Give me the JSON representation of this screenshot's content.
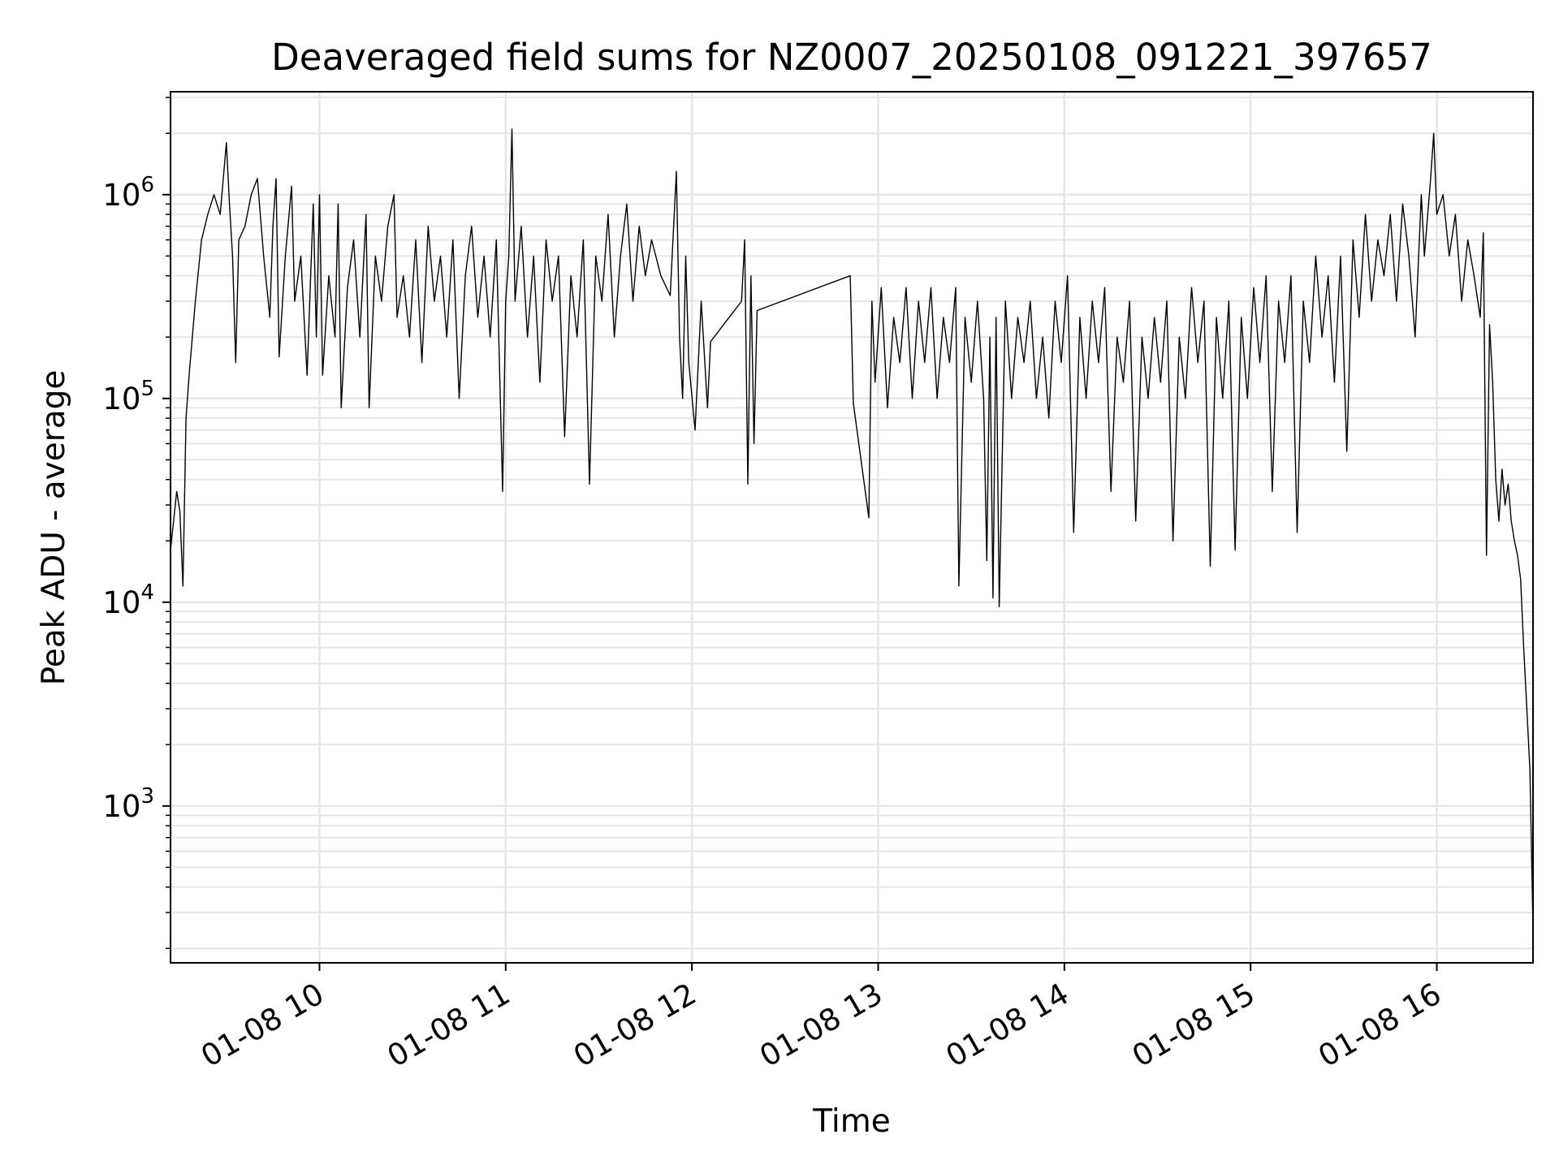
{
  "chart_data": {
    "type": "line",
    "title": "Deaveraged field sums for NZ0007_20250108_091221_397657",
    "xlabel": "Time",
    "ylabel": "Peak ADU - average",
    "yscale": "log",
    "grid": true,
    "grid_minor": true,
    "line_color": "#000000",
    "grid_color": "#e6e6e6",
    "xlim": [
      "2025-01-08 09:12",
      "2025-01-08 16:31"
    ],
    "ylim": [
      170,
      3200000
    ],
    "x_ticks": [
      {
        "value": "2025-01-08 10:00",
        "label": "01-08 10"
      },
      {
        "value": "2025-01-08 11:00",
        "label": "01-08 11"
      },
      {
        "value": "2025-01-08 12:00",
        "label": "01-08 12"
      },
      {
        "value": "2025-01-08 13:00",
        "label": "01-08 13"
      },
      {
        "value": "2025-01-08 14:00",
        "label": "01-08 14"
      },
      {
        "value": "2025-01-08 15:00",
        "label": "01-08 15"
      },
      {
        "value": "2025-01-08 16:00",
        "label": "01-08 16"
      }
    ],
    "y_ticks": [
      {
        "value": 1000,
        "base": "10",
        "exp": "3"
      },
      {
        "value": 10000,
        "base": "10",
        "exp": "4"
      },
      {
        "value": 100000,
        "base": "10",
        "exp": "5"
      },
      {
        "value": 1000000,
        "base": "10",
        "exp": "6"
      }
    ],
    "series": [
      {
        "points": [
          [
            "2025-01-08 09:12",
            18000
          ],
          [
            "2025-01-08 09:13",
            25000
          ],
          [
            "2025-01-08 09:14",
            35000
          ],
          [
            "2025-01-08 09:15",
            28000
          ],
          [
            "2025-01-08 09:16",
            12000
          ],
          [
            "2025-01-08 09:17",
            80000
          ],
          [
            "2025-01-08 09:18",
            130000
          ],
          [
            "2025-01-08 09:20",
            300000
          ],
          [
            "2025-01-08 09:22",
            600000
          ],
          [
            "2025-01-08 09:24",
            800000
          ],
          [
            "2025-01-08 09:26",
            1000000
          ],
          [
            "2025-01-08 09:28",
            800000
          ],
          [
            "2025-01-08 09:30",
            1800000
          ],
          [
            "2025-01-08 09:31",
            900000
          ],
          [
            "2025-01-08 09:32",
            500000
          ],
          [
            "2025-01-08 09:33",
            150000
          ],
          [
            "2025-01-08 09:34",
            600000
          ],
          [
            "2025-01-08 09:36",
            700000
          ],
          [
            "2025-01-08 09:38",
            1000000
          ],
          [
            "2025-01-08 09:40",
            1200000
          ],
          [
            "2025-01-08 09:42",
            500000
          ],
          [
            "2025-01-08 09:44",
            250000
          ],
          [
            "2025-01-08 09:45",
            700000
          ],
          [
            "2025-01-08 09:46",
            1200000
          ],
          [
            "2025-01-08 09:47",
            160000
          ],
          [
            "2025-01-08 09:49",
            500000
          ],
          [
            "2025-01-08 09:51",
            1100000
          ],
          [
            "2025-01-08 09:52",
            300000
          ],
          [
            "2025-01-08 09:54",
            500000
          ],
          [
            "2025-01-08 09:56",
            130000
          ],
          [
            "2025-01-08 09:58",
            900000
          ],
          [
            "2025-01-08 09:59",
            200000
          ],
          [
            "2025-01-08 10:00",
            1000000
          ],
          [
            "2025-01-08 10:01",
            130000
          ],
          [
            "2025-01-08 10:03",
            400000
          ],
          [
            "2025-01-08 10:05",
            200000
          ],
          [
            "2025-01-08 10:06",
            900000
          ],
          [
            "2025-01-08 10:07",
            90000
          ],
          [
            "2025-01-08 10:09",
            350000
          ],
          [
            "2025-01-08 10:11",
            600000
          ],
          [
            "2025-01-08 10:13",
            200000
          ],
          [
            "2025-01-08 10:15",
            800000
          ],
          [
            "2025-01-08 10:16",
            90000
          ],
          [
            "2025-01-08 10:18",
            500000
          ],
          [
            "2025-01-08 10:20",
            300000
          ],
          [
            "2025-01-08 10:22",
            700000
          ],
          [
            "2025-01-08 10:24",
            1000000
          ],
          [
            "2025-01-08 10:25",
            250000
          ],
          [
            "2025-01-08 10:27",
            400000
          ],
          [
            "2025-01-08 10:29",
            200000
          ],
          [
            "2025-01-08 10:31",
            600000
          ],
          [
            "2025-01-08 10:33",
            150000
          ],
          [
            "2025-01-08 10:35",
            700000
          ],
          [
            "2025-01-08 10:37",
            300000
          ],
          [
            "2025-01-08 10:39",
            500000
          ],
          [
            "2025-01-08 10:41",
            200000
          ],
          [
            "2025-01-08 10:43",
            600000
          ],
          [
            "2025-01-08 10:45",
            100000
          ],
          [
            "2025-01-08 10:47",
            400000
          ],
          [
            "2025-01-08 10:49",
            700000
          ],
          [
            "2025-01-08 10:51",
            250000
          ],
          [
            "2025-01-08 10:53",
            500000
          ],
          [
            "2025-01-08 10:55",
            200000
          ],
          [
            "2025-01-08 10:57",
            600000
          ],
          [
            "2025-01-08 10:59",
            35000
          ],
          [
            "2025-01-08 11:00",
            300000
          ],
          [
            "2025-01-08 11:01",
            500000
          ],
          [
            "2025-01-08 11:02",
            2100000
          ],
          [
            "2025-01-08 11:03",
            300000
          ],
          [
            "2025-01-08 11:05",
            700000
          ],
          [
            "2025-01-08 11:07",
            200000
          ],
          [
            "2025-01-08 11:09",
            500000
          ],
          [
            "2025-01-08 11:11",
            120000
          ],
          [
            "2025-01-08 11:13",
            600000
          ],
          [
            "2025-01-08 11:15",
            300000
          ],
          [
            "2025-01-08 11:17",
            500000
          ],
          [
            "2025-01-08 11:19",
            65000
          ],
          [
            "2025-01-08 11:21",
            400000
          ],
          [
            "2025-01-08 11:23",
            200000
          ],
          [
            "2025-01-08 11:25",
            600000
          ],
          [
            "2025-01-08 11:27",
            38000
          ],
          [
            "2025-01-08 11:29",
            500000
          ],
          [
            "2025-01-08 11:31",
            300000
          ],
          [
            "2025-01-08 11:33",
            800000
          ],
          [
            "2025-01-08 11:35",
            200000
          ],
          [
            "2025-01-08 11:37",
            500000
          ],
          [
            "2025-01-08 11:39",
            900000
          ],
          [
            "2025-01-08 11:41",
            300000
          ],
          [
            "2025-01-08 11:43",
            700000
          ],
          [
            "2025-01-08 11:45",
            400000
          ],
          [
            "2025-01-08 11:47",
            600000
          ],
          [
            "2025-01-08 11:50",
            400000
          ],
          [
            "2025-01-08 11:53",
            320000
          ],
          [
            "2025-01-08 11:55",
            1300000
          ],
          [
            "2025-01-08 11:56",
            200000
          ],
          [
            "2025-01-08 11:57",
            100000
          ],
          [
            "2025-01-08 11:58",
            500000
          ],
          [
            "2025-01-08 11:59",
            150000
          ],
          [
            "2025-01-08 12:01",
            70000
          ],
          [
            "2025-01-08 12:03",
            300000
          ],
          [
            "2025-01-08 12:05",
            90000
          ],
          [
            "2025-01-08 12:06",
            190000
          ],
          [
            "2025-01-08 12:16",
            300000
          ],
          [
            "2025-01-08 12:17",
            600000
          ],
          [
            "2025-01-08 12:18",
            38000
          ],
          [
            "2025-01-08 12:19",
            400000
          ],
          [
            "2025-01-08 12:20",
            60000
          ],
          [
            "2025-01-08 12:21",
            270000
          ],
          [
            "2025-01-08 12:51",
            400000
          ],
          [
            "2025-01-08 12:52",
            95000
          ],
          [
            "2025-01-08 12:57",
            26000
          ],
          [
            "2025-01-08 12:58",
            300000
          ],
          [
            "2025-01-08 12:59",
            120000
          ],
          [
            "2025-01-08 13:01",
            350000
          ],
          [
            "2025-01-08 13:03",
            90000
          ],
          [
            "2025-01-08 13:05",
            250000
          ],
          [
            "2025-01-08 13:07",
            150000
          ],
          [
            "2025-01-08 13:09",
            350000
          ],
          [
            "2025-01-08 13:11",
            100000
          ],
          [
            "2025-01-08 13:13",
            300000
          ],
          [
            "2025-01-08 13:15",
            150000
          ],
          [
            "2025-01-08 13:17",
            350000
          ],
          [
            "2025-01-08 13:19",
            100000
          ],
          [
            "2025-01-08 13:21",
            250000
          ],
          [
            "2025-01-08 13:23",
            150000
          ],
          [
            "2025-01-08 13:25",
            350000
          ],
          [
            "2025-01-08 13:26",
            12000
          ],
          [
            "2025-01-08 13:28",
            250000
          ],
          [
            "2025-01-08 13:30",
            120000
          ],
          [
            "2025-01-08 13:32",
            300000
          ],
          [
            "2025-01-08 13:34",
            100000
          ],
          [
            "2025-01-08 13:35",
            16000
          ],
          [
            "2025-01-08 13:36",
            200000
          ],
          [
            "2025-01-08 13:37",
            10500
          ],
          [
            "2025-01-08 13:38",
            250000
          ],
          [
            "2025-01-08 13:39",
            9500
          ],
          [
            "2025-01-08 13:41",
            300000
          ],
          [
            "2025-01-08 13:43",
            100000
          ],
          [
            "2025-01-08 13:45",
            250000
          ],
          [
            "2025-01-08 13:47",
            150000
          ],
          [
            "2025-01-08 13:49",
            300000
          ],
          [
            "2025-01-08 13:51",
            100000
          ],
          [
            "2025-01-08 13:53",
            200000
          ],
          [
            "2025-01-08 13:55",
            80000
          ],
          [
            "2025-01-08 13:57",
            300000
          ],
          [
            "2025-01-08 13:59",
            150000
          ],
          [
            "2025-01-08 14:01",
            400000
          ],
          [
            "2025-01-08 14:03",
            22000
          ],
          [
            "2025-01-08 14:05",
            250000
          ],
          [
            "2025-01-08 14:07",
            100000
          ],
          [
            "2025-01-08 14:09",
            300000
          ],
          [
            "2025-01-08 14:11",
            150000
          ],
          [
            "2025-01-08 14:13",
            350000
          ],
          [
            "2025-01-08 14:15",
            35000
          ],
          [
            "2025-01-08 14:17",
            200000
          ],
          [
            "2025-01-08 14:19",
            120000
          ],
          [
            "2025-01-08 14:21",
            300000
          ],
          [
            "2025-01-08 14:23",
            25000
          ],
          [
            "2025-01-08 14:25",
            200000
          ],
          [
            "2025-01-08 14:27",
            100000
          ],
          [
            "2025-01-08 14:29",
            250000
          ],
          [
            "2025-01-08 14:31",
            120000
          ],
          [
            "2025-01-08 14:33",
            300000
          ],
          [
            "2025-01-08 14:35",
            20000
          ],
          [
            "2025-01-08 14:37",
            200000
          ],
          [
            "2025-01-08 14:39",
            100000
          ],
          [
            "2025-01-08 14:41",
            350000
          ],
          [
            "2025-01-08 14:43",
            150000
          ],
          [
            "2025-01-08 14:45",
            300000
          ],
          [
            "2025-01-08 14:47",
            15000
          ],
          [
            "2025-01-08 14:49",
            250000
          ],
          [
            "2025-01-08 14:51",
            100000
          ],
          [
            "2025-01-08 14:53",
            300000
          ],
          [
            "2025-01-08 14:55",
            18000
          ],
          [
            "2025-01-08 14:57",
            250000
          ],
          [
            "2025-01-08 14:59",
            100000
          ],
          [
            "2025-01-08 15:01",
            350000
          ],
          [
            "2025-01-08 15:03",
            150000
          ],
          [
            "2025-01-08 15:05",
            400000
          ],
          [
            "2025-01-08 15:07",
            35000
          ],
          [
            "2025-01-08 15:09",
            300000
          ],
          [
            "2025-01-08 15:11",
            150000
          ],
          [
            "2025-01-08 15:13",
            400000
          ],
          [
            "2025-01-08 15:15",
            22000
          ],
          [
            "2025-01-08 15:17",
            300000
          ],
          [
            "2025-01-08 15:19",
            150000
          ],
          [
            "2025-01-08 15:21",
            500000
          ],
          [
            "2025-01-08 15:23",
            200000
          ],
          [
            "2025-01-08 15:25",
            400000
          ],
          [
            "2025-01-08 15:27",
            120000
          ],
          [
            "2025-01-08 15:29",
            500000
          ],
          [
            "2025-01-08 15:31",
            55000
          ],
          [
            "2025-01-08 15:33",
            600000
          ],
          [
            "2025-01-08 15:35",
            250000
          ],
          [
            "2025-01-08 15:37",
            800000
          ],
          [
            "2025-01-08 15:39",
            300000
          ],
          [
            "2025-01-08 15:41",
            600000
          ],
          [
            "2025-01-08 15:43",
            400000
          ],
          [
            "2025-01-08 15:45",
            800000
          ],
          [
            "2025-01-08 15:47",
            300000
          ],
          [
            "2025-01-08 15:49",
            900000
          ],
          [
            "2025-01-08 15:51",
            500000
          ],
          [
            "2025-01-08 15:53",
            200000
          ],
          [
            "2025-01-08 15:55",
            1000000
          ],
          [
            "2025-01-08 15:56",
            500000
          ],
          [
            "2025-01-08 15:58",
            1200000
          ],
          [
            "2025-01-08 15:59",
            2000000
          ],
          [
            "2025-01-08 16:00",
            800000
          ],
          [
            "2025-01-08 16:02",
            1000000
          ],
          [
            "2025-01-08 16:04",
            500000
          ],
          [
            "2025-01-08 16:06",
            800000
          ],
          [
            "2025-01-08 16:08",
            300000
          ],
          [
            "2025-01-08 16:10",
            600000
          ],
          [
            "2025-01-08 16:12",
            400000
          ],
          [
            "2025-01-08 16:14",
            250000
          ],
          [
            "2025-01-08 16:15",
            650000
          ],
          [
            "2025-01-08 16:16",
            17000
          ],
          [
            "2025-01-08 16:17",
            230000
          ],
          [
            "2025-01-08 16:18",
            120000
          ],
          [
            "2025-01-08 16:19",
            40000
          ],
          [
            "2025-01-08 16:20",
            25000
          ],
          [
            "2025-01-08 16:21",
            45000
          ],
          [
            "2025-01-08 16:22",
            30000
          ],
          [
            "2025-01-08 16:23",
            38000
          ],
          [
            "2025-01-08 16:24",
            25000
          ],
          [
            "2025-01-08 16:25",
            20000
          ],
          [
            "2025-01-08 16:26",
            17000
          ],
          [
            "2025-01-08 16:27",
            13000
          ],
          [
            "2025-01-08 16:28",
            6000
          ],
          [
            "2025-01-08 16:29",
            3000
          ],
          [
            "2025-01-08 16:30",
            1500
          ],
          [
            "2025-01-08 16:31",
            250
          ]
        ]
      }
    ]
  }
}
